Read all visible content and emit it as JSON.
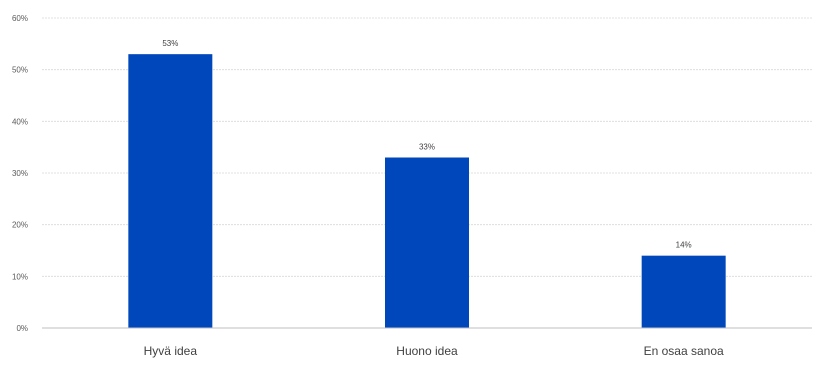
{
  "chart_data": {
    "type": "bar",
    "categories": [
      "Hyvä idea",
      "Huono idea",
      "En osaa sanoa"
    ],
    "values": [
      53,
      33,
      14
    ],
    "data_labels": [
      "53%",
      "33%",
      "14%"
    ],
    "ylim": [
      0,
      60
    ],
    "yticks": [
      0,
      10,
      20,
      30,
      40,
      50,
      60
    ],
    "ytick_labels": [
      "0%",
      "10%",
      "20%",
      "30%",
      "40%",
      "50%",
      "60%"
    ],
    "title": "",
    "xlabel": "",
    "ylabel": "",
    "grid": true,
    "legend": "none",
    "bar_color": "#0047bb"
  }
}
